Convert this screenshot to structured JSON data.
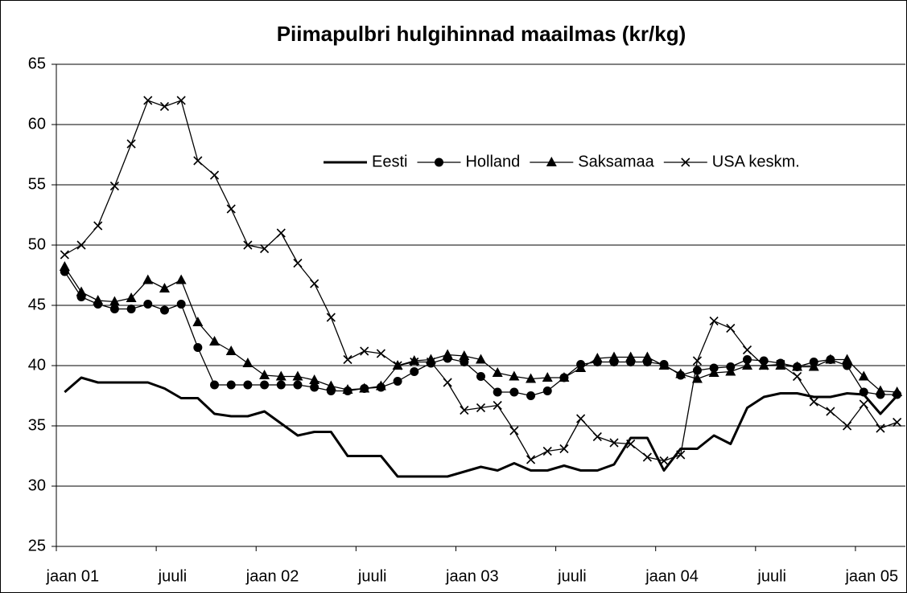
{
  "chart_data": {
    "type": "line",
    "title": "Piimapulbri hulgihinnad maailmas (kr/kg)",
    "categories": [
      "jaan 01",
      null,
      null,
      null,
      null,
      null,
      "juuli",
      null,
      null,
      null,
      null,
      null,
      "jaan 02",
      null,
      null,
      null,
      null,
      null,
      "juuli",
      null,
      null,
      null,
      null,
      null,
      "jaan 03",
      null,
      null,
      null,
      null,
      null,
      "juuli",
      null,
      null,
      null,
      null,
      null,
      "jaan 04",
      null,
      null,
      null,
      null,
      null,
      "juuli",
      null,
      null,
      null,
      null,
      null,
      "jaan 05",
      null,
      null
    ],
    "series": [
      {
        "name": "Eesti",
        "color": "#000000",
        "marker": "none",
        "values": [
          37.8,
          39.0,
          38.6,
          38.6,
          38.6,
          38.6,
          38.1,
          37.3,
          37.3,
          36.0,
          35.8,
          35.8,
          36.2,
          35.2,
          34.2,
          34.5,
          34.5,
          32.5,
          32.5,
          32.5,
          30.8,
          30.8,
          30.8,
          30.8,
          31.2,
          31.6,
          31.3,
          31.9,
          31.3,
          31.3,
          31.7,
          31.3,
          31.3,
          31.8,
          34.0,
          34.0,
          31.3,
          33.1,
          33.1,
          34.2,
          33.5,
          36.5,
          37.4,
          37.7,
          37.7,
          37.4,
          37.4,
          37.7,
          37.6,
          36.0,
          37.5
        ]
      },
      {
        "name": "Holland",
        "color": "#000000",
        "marker": "circle",
        "values": [
          47.8,
          45.7,
          45.1,
          44.7,
          44.7,
          45.1,
          44.6,
          45.1,
          41.5,
          38.4,
          38.4,
          38.4,
          38.4,
          38.4,
          38.4,
          38.2,
          37.9,
          37.9,
          38.1,
          38.2,
          38.7,
          39.5,
          40.2,
          40.6,
          40.3,
          39.1,
          37.8,
          37.8,
          37.5,
          37.9,
          39.0,
          40.1,
          40.3,
          40.3,
          40.3,
          40.3,
          40.1,
          39.2,
          39.6,
          39.8,
          39.9,
          40.5,
          40.4,
          40.2,
          39.9,
          40.3,
          40.5,
          40.0,
          37.8,
          37.6,
          37.6
        ]
      },
      {
        "name": "Saksamaa",
        "color": "#000000",
        "marker": "triangle",
        "values": [
          48.2,
          46.1,
          45.4,
          45.3,
          45.6,
          47.1,
          46.4,
          47.1,
          43.6,
          42.0,
          41.2,
          40.2,
          39.2,
          39.1,
          39.1,
          38.8,
          38.3,
          38.0,
          38.1,
          38.3,
          40.0,
          40.4,
          40.5,
          40.9,
          40.8,
          40.5,
          39.4,
          39.1,
          38.9,
          39.0,
          39.0,
          39.8,
          40.6,
          40.7,
          40.7,
          40.7,
          40.0,
          39.3,
          38.9,
          39.4,
          39.5,
          40.0,
          40.0,
          40.0,
          39.9,
          39.9,
          40.5,
          40.5,
          39.1,
          37.9,
          37.8
        ]
      },
      {
        "name": "USA keskm.",
        "color": "#000000",
        "marker": "x",
        "values": [
          49.2,
          50.0,
          51.6,
          54.9,
          58.4,
          62.0,
          61.5,
          62.0,
          57.0,
          55.8,
          53.0,
          50.0,
          49.7,
          51.0,
          48.5,
          46.8,
          44.0,
          40.5,
          41.2,
          41.0,
          40.0,
          40.3,
          40.3,
          38.6,
          36.3,
          36.5,
          36.7,
          34.6,
          32.2,
          32.9,
          33.1,
          35.6,
          34.1,
          33.6,
          33.5,
          32.4,
          32.1,
          32.6,
          40.4,
          43.7,
          43.1,
          41.3,
          40.0,
          40.1,
          39.1,
          37.0,
          36.2,
          35.0,
          36.8,
          34.8,
          35.3
        ]
      }
    ],
    "ylim": [
      25,
      65
    ],
    "yticks": [
      25,
      30,
      35,
      40,
      45,
      50,
      55,
      60,
      65
    ],
    "grid": true,
    "legend": "upper right"
  }
}
